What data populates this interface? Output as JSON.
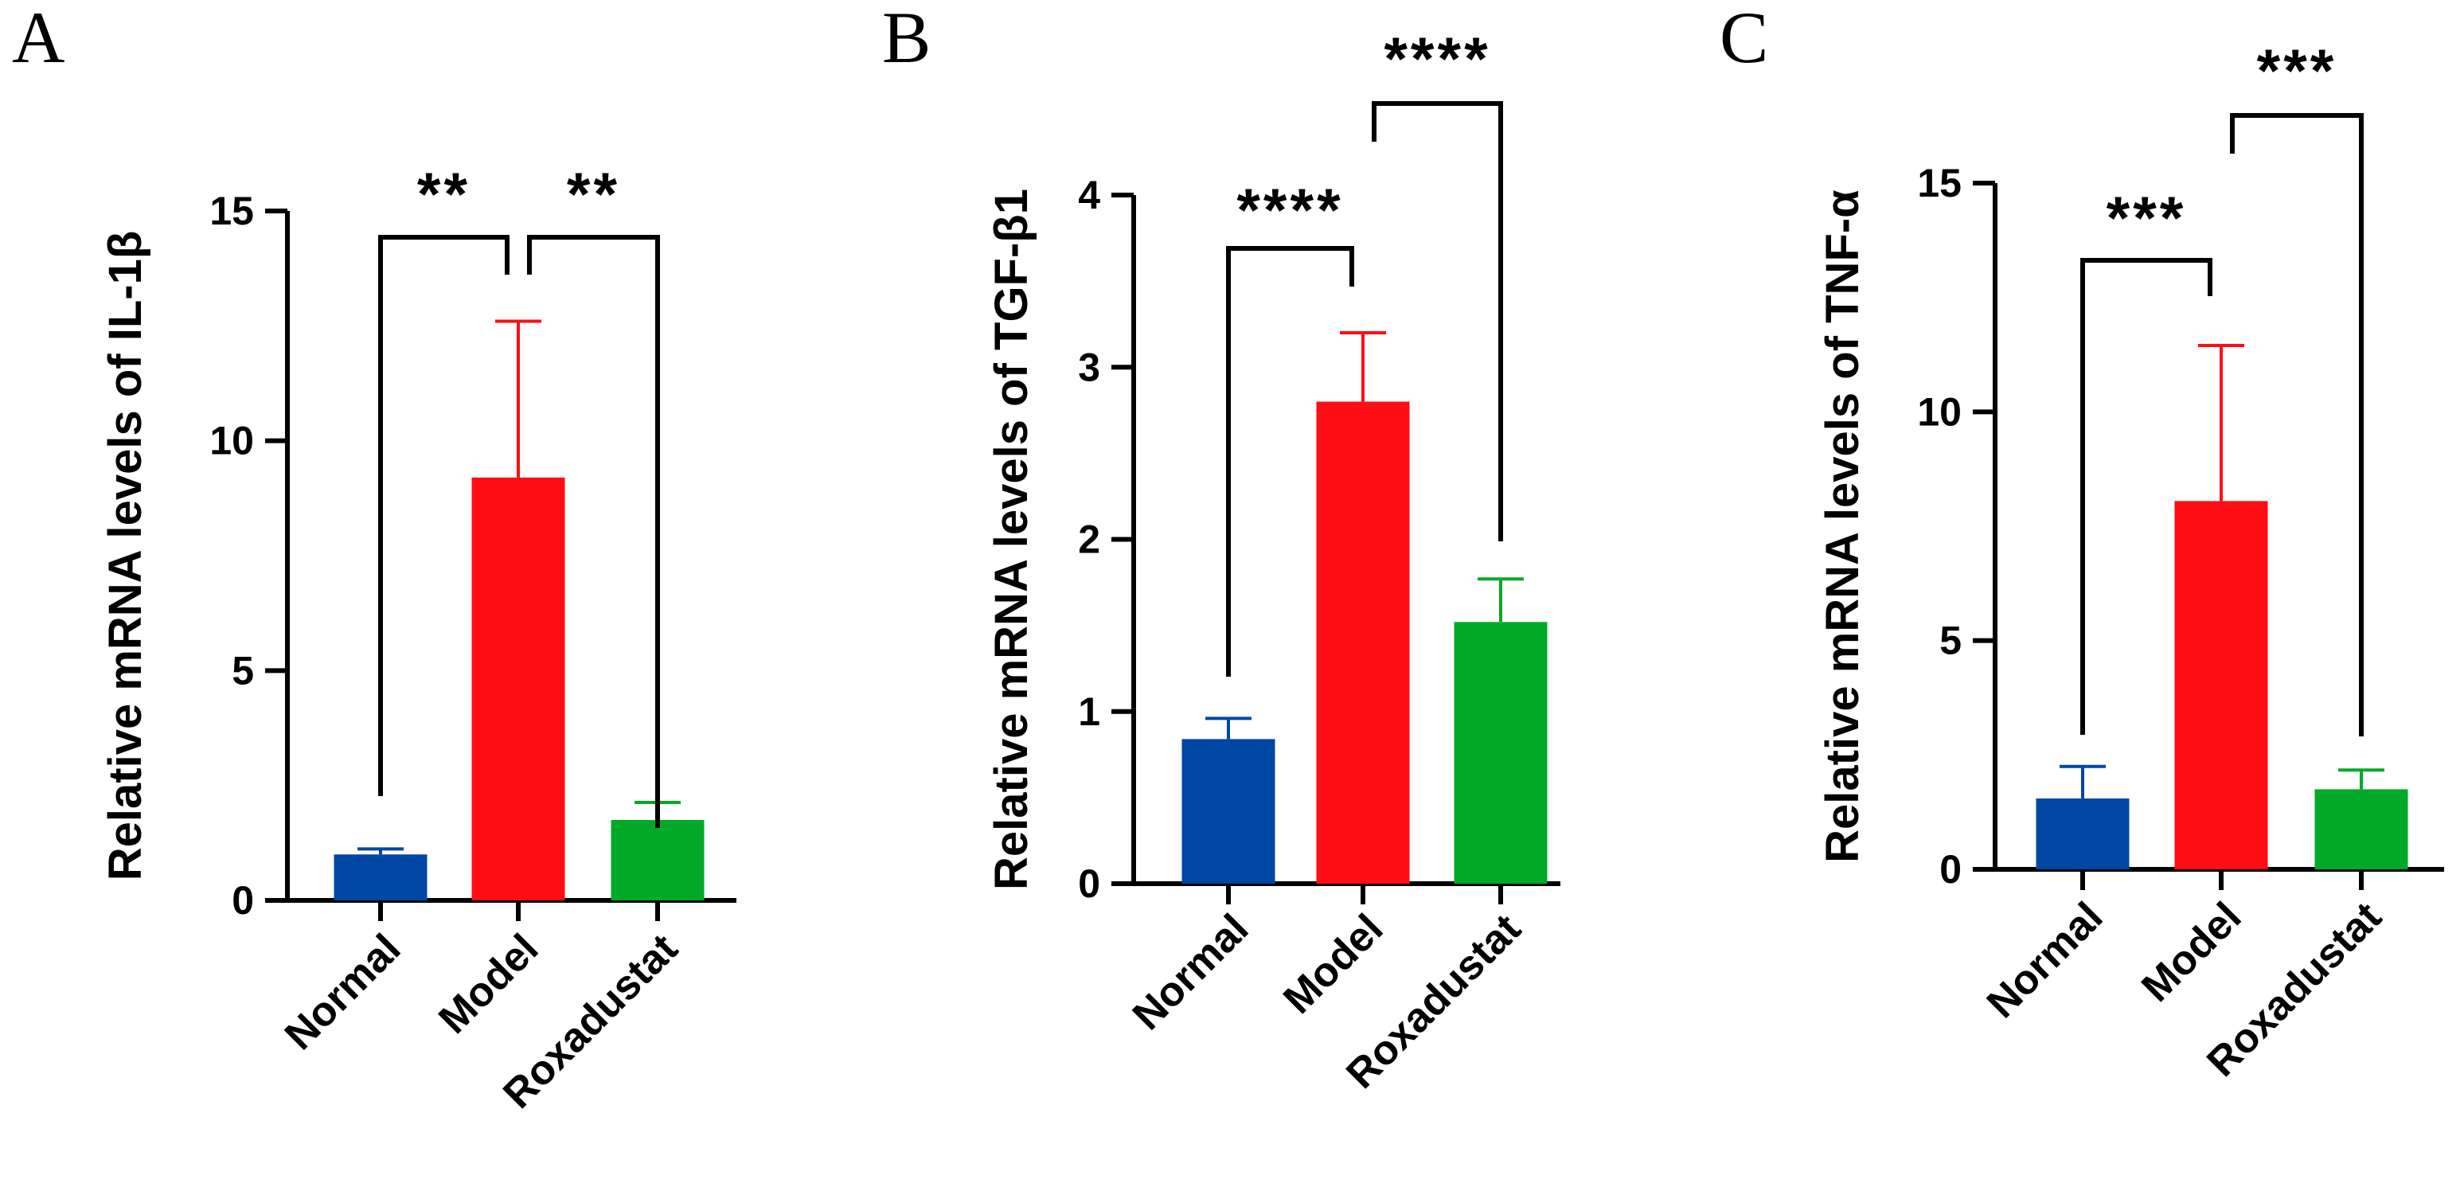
{
  "chart_data": [
    {
      "type": "bar",
      "panel": "A",
      "title": "",
      "xlabel": "",
      "ylabel": "Relative mRNA levels of IL-1β",
      "ylim": [
        0,
        15
      ],
      "yticks": [
        "0",
        "5",
        "10",
        "15"
      ],
      "categories": [
        "Normal",
        "Model",
        "Roxadustat"
      ],
      "values": [
        1.0,
        9.2,
        1.75
      ],
      "error": [
        0.12,
        3.4,
        0.38
      ],
      "colors": [
        "#0047A5",
        "#FF0D14",
        "#00AA28"
      ],
      "significance": [
        {
          "from": 0,
          "to": 1,
          "label": "**"
        },
        {
          "from": 1,
          "to": 2,
          "label": "**"
        }
      ]
    },
    {
      "type": "bar",
      "panel": "B",
      "title": "",
      "xlabel": "",
      "ylabel": "Relative mRNA levels of TGF-β1",
      "ylim": [
        0,
        4
      ],
      "yticks": [
        "0",
        "1",
        "2",
        "3",
        "4"
      ],
      "categories": [
        "Normal",
        "Model",
        "Roxadustat"
      ],
      "values": [
        0.84,
        2.8,
        1.52
      ],
      "error": [
        0.12,
        0.4,
        0.25
      ],
      "colors": [
        "#0047A5",
        "#FF0D14",
        "#00AA28"
      ],
      "significance": [
        {
          "from": 0,
          "to": 1,
          "label": "****"
        },
        {
          "from": 1,
          "to": 2,
          "label": "****"
        }
      ]
    },
    {
      "type": "bar",
      "panel": "C",
      "title": "",
      "xlabel": "",
      "ylabel": "Relative mRNA levels of TNF-α",
      "ylim": [
        0,
        15
      ],
      "yticks": [
        "0",
        "5",
        "10",
        "15"
      ],
      "categories": [
        "Normal",
        "Model",
        "Roxadustat"
      ],
      "values": [
        1.55,
        8.05,
        1.75
      ],
      "error": [
        0.7,
        3.4,
        0.42
      ],
      "colors": [
        "#0047A5",
        "#FF0D14",
        "#00AA28"
      ],
      "significance": [
        {
          "from": 0,
          "to": 1,
          "label": "***"
        },
        {
          "from": 1,
          "to": 2,
          "label": "***"
        }
      ]
    }
  ]
}
